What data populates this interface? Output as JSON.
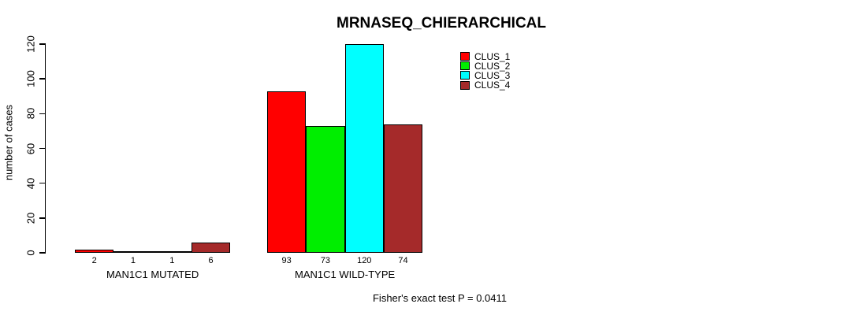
{
  "chart_data": {
    "type": "bar",
    "title": "MRNASEQ_CHIERARCHICAL",
    "ylabel": "number of cases",
    "xlabel": "",
    "categories": [
      "MAN1C1 MUTATED",
      "MAN1C1 WILD-TYPE"
    ],
    "series": [
      {
        "name": "CLUS_1",
        "color": "#ff0000",
        "values": [
          2,
          93
        ]
      },
      {
        "name": "CLUS_2",
        "color": "#00ee00",
        "values": [
          1,
          73
        ]
      },
      {
        "name": "CLUS_3",
        "color": "#00ffff",
        "values": [
          1,
          120
        ]
      },
      {
        "name": "CLUS_4",
        "color": "#a52a2a",
        "values": [
          6,
          74
        ]
      }
    ],
    "yticks": [
      0,
      20,
      40,
      60,
      80,
      100,
      120
    ],
    "ylim": [
      0,
      120
    ],
    "grid": false,
    "bar_value_labels_shown": true,
    "legend": {
      "position": "top-right",
      "entries": [
        "CLUS_1",
        "CLUS_2",
        "CLUS_3",
        "CLUS_4"
      ]
    },
    "annotation": "Fisher's exact test P = 0.0411"
  }
}
